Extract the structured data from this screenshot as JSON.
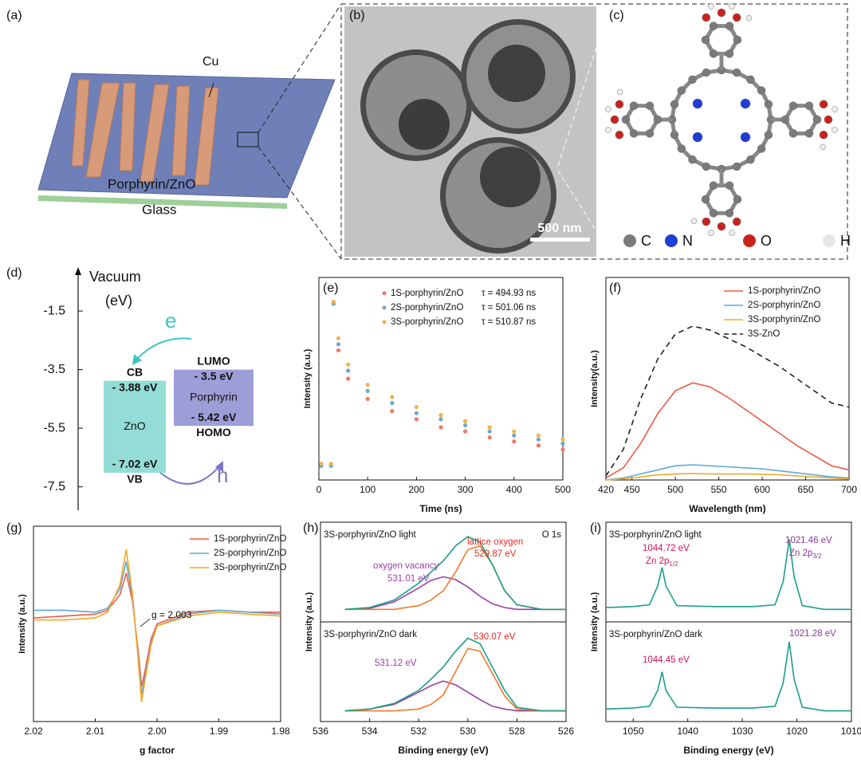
{
  "panel_labels": [
    "(a)",
    "(b)",
    "(c)",
    "(d)",
    "(e)",
    "(f)",
    "(g)",
    "(h)",
    "(i)"
  ],
  "device": {
    "electrode": "Cu",
    "layer": "Porphyrin/ZnO",
    "substrate": "Glass"
  },
  "tem": {
    "scale_bar": "500 nm"
  },
  "molecule": {
    "legend": [
      "C",
      "N",
      "O",
      "H"
    ]
  },
  "chart_data": [
    {
      "type": "band",
      "y_label": "Vacuum",
      "y_unit": "(eV)",
      "ylim": [
        -8.3,
        0
      ],
      "yticks": [
        -1.5,
        -3.5,
        -5.5,
        -7.5
      ],
      "carriers": [
        "e",
        "h"
      ],
      "bands": [
        {
          "name": "ZnO",
          "color": "#93ddd6",
          "values": [
            -3.88,
            -7.02
          ],
          "value_labels": [
            "- 3.88 eV",
            "- 7.02 eV"
          ],
          "top_name": "CB",
          "bottom_name": "VB"
        },
        {
          "name": "Porphyrin",
          "color": "#9d9ed8",
          "values": [
            -3.5,
            -5.42
          ],
          "value_labels": [
            "- 3.5 eV",
            "- 5.42 eV"
          ],
          "top_name": "LUMO",
          "bottom_name": "HOMO"
        }
      ]
    },
    {
      "type": "scatter",
      "x_label": "Time (ns)",
      "y_label": "Intensity (a.u.)",
      "xlim": [
        0,
        500
      ],
      "xticks": [
        0,
        100,
        200,
        300,
        400,
        500
      ],
      "ylim": [
        0,
        1
      ],
      "x": [
        5,
        25,
        30,
        40,
        60,
        100,
        150,
        200,
        250,
        300,
        350,
        400,
        450,
        500
      ],
      "series": [
        {
          "name": "1S-porphyrin/ZnO",
          "lifetime": "τ = 494.93 ns",
          "color": "#f07767",
          "values": [
            0.07,
            0.07,
            0.87,
            0.64,
            0.5,
            0.4,
            0.34,
            0.3,
            0.26,
            0.24,
            0.21,
            0.19,
            0.17,
            0.15
          ]
        },
        {
          "name": "2S-porphyrin/ZnO",
          "lifetime": "τ = 501.06 ns",
          "color": "#6fa9c9",
          "values": [
            0.07,
            0.07,
            0.87,
            0.67,
            0.54,
            0.44,
            0.38,
            0.33,
            0.3,
            0.27,
            0.24,
            0.22,
            0.2,
            0.18
          ]
        },
        {
          "name": "3S-porphyrin/ZnO",
          "lifetime": "τ = 510.87 ns",
          "color": "#f2b24e",
          "values": [
            0.08,
            0.08,
            0.88,
            0.7,
            0.57,
            0.47,
            0.41,
            0.36,
            0.32,
            0.29,
            0.26,
            0.24,
            0.22,
            0.2
          ]
        }
      ]
    },
    {
      "type": "line",
      "x_label": "Wavelength (nm)",
      "y_label": "Intensity(a.u.)",
      "xlim": [
        420,
        700
      ],
      "xticks": [
        420,
        450,
        500,
        550,
        600,
        650,
        700
      ],
      "ylim": [
        0,
        1
      ],
      "x": [
        420,
        440,
        460,
        480,
        500,
        520,
        540,
        560,
        580,
        600,
        620,
        640,
        660,
        680,
        700
      ],
      "series": [
        {
          "name": "1S-porphyrin/ZnO",
          "color": "#ef5a45",
          "values": [
            0.01,
            0.06,
            0.18,
            0.33,
            0.44,
            0.48,
            0.46,
            0.41,
            0.35,
            0.29,
            0.23,
            0.17,
            0.12,
            0.07,
            0.05
          ]
        },
        {
          "name": "2S-porphyrin/ZnO",
          "color": "#5ea8d6",
          "values": [
            0,
            0.01,
            0.03,
            0.05,
            0.07,
            0.075,
            0.07,
            0.065,
            0.06,
            0.055,
            0.045,
            0.035,
            0.025,
            0.015,
            0.01
          ]
        },
        {
          "name": "3S-porphyrin/ZnO",
          "color": "#eeaa2c",
          "values": [
            0,
            0.005,
            0.015,
            0.025,
            0.03,
            0.032,
            0.03,
            0.03,
            0.03,
            0.028,
            0.025,
            0.02,
            0.015,
            0.01,
            0.005
          ]
        },
        {
          "name": "3S-ZnO",
          "color": "#222222",
          "dash": true,
          "values": [
            0.02,
            0.15,
            0.4,
            0.6,
            0.72,
            0.76,
            0.74,
            0.7,
            0.66,
            0.61,
            0.56,
            0.5,
            0.44,
            0.38,
            0.36
          ]
        }
      ]
    },
    {
      "type": "line",
      "x_label": "g factor",
      "y_label": "Intensity (a.u.)",
      "xlim": [
        2.02,
        1.98
      ],
      "xticks": [
        2.02,
        2.01,
        {
          "value": 2,
          "label": "2.00"
        },
        1.99,
        1.98
      ],
      "ylim": [
        0,
        1
      ],
      "annotation": "g = 2.003",
      "x": [
        2.02,
        2.015,
        2.01,
        2.008,
        2.006,
        2.005,
        2.004,
        2.003,
        2.0025,
        2.002,
        2.001,
        2.0,
        1.995,
        1.99,
        1.985,
        1.98
      ],
      "series": [
        {
          "name": "1S-porphyrin/ZnO",
          "color": "#ef5a45",
          "values": [
            0.53,
            0.54,
            0.55,
            0.57,
            0.65,
            0.76,
            0.62,
            0.35,
            0.18,
            0.25,
            0.42,
            0.5,
            0.56,
            0.57,
            0.56,
            0.56
          ]
        },
        {
          "name": "2S-porphyrin/ZnO",
          "color": "#5ea8d6",
          "values": [
            0.57,
            0.57,
            0.56,
            0.58,
            0.68,
            0.82,
            0.64,
            0.32,
            0.14,
            0.22,
            0.4,
            0.49,
            0.55,
            0.57,
            0.56,
            0.55
          ]
        },
        {
          "name": "3S-porphyrin/ZnO",
          "color": "#f5a623",
          "values": [
            0.52,
            0.52,
            0.53,
            0.56,
            0.7,
            0.88,
            0.66,
            0.3,
            0.1,
            0.2,
            0.39,
            0.49,
            0.54,
            0.56,
            0.55,
            0.54
          ]
        }
      ]
    },
    {
      "type": "line",
      "x_label": "Binding energy (eV)",
      "y_label": "Intensity (a.u.)",
      "label": "O 1s",
      "xlim": [
        536,
        526
      ],
      "xticks": [
        536,
        534,
        532,
        530,
        528,
        526
      ],
      "ylim": [
        0,
        1
      ],
      "x": [
        535,
        534,
        533,
        532,
        531.5,
        531,
        530.5,
        530,
        529.5,
        529,
        528.5,
        528,
        527,
        526
      ],
      "subplots": [
        {
          "title": "3S-porphyrin/ZnO light",
          "series": [
            {
              "color": "#9b3fa8",
              "values": [
                0.1,
                0.11,
                0.18,
                0.33,
                0.41,
                0.45,
                0.42,
                0.34,
                0.24,
                0.16,
                0.12,
                0.1,
                0.1,
                0.1
              ]
            },
            {
              "color": "#f07a2a",
              "values": [
                0.1,
                0.1,
                0.1,
                0.14,
                0.2,
                0.3,
                0.5,
                0.74,
                0.78,
                0.58,
                0.3,
                0.15,
                0.1,
                0.1
              ]
            },
            {
              "color": "#1a9e8a",
              "values": [
                0.1,
                0.12,
                0.2,
                0.38,
                0.5,
                0.62,
                0.78,
                0.88,
                0.82,
                0.58,
                0.3,
                0.15,
                0.1,
                0.1
              ]
            }
          ],
          "annotations": [
            {
              "text": "lattice oxygen",
              "color": "#e8281e"
            },
            {
              "text": "529.87 eV",
              "color": "#e8281e"
            },
            {
              "text": "oxygen vacancy",
              "color": "#9b3fa8"
            },
            {
              "text": "531.01 eV",
              "color": "#9b3fa8"
            }
          ]
        },
        {
          "title": "3S-porphyrin/ZnO dark",
          "series": [
            {
              "color": "#9b3fa8",
              "values": [
                0.08,
                0.1,
                0.15,
                0.28,
                0.35,
                0.4,
                0.36,
                0.28,
                0.2,
                0.13,
                0.1,
                0.08,
                0.08,
                0.08
              ]
            },
            {
              "color": "#f07a2a",
              "values": [
                0.08,
                0.08,
                0.08,
                0.1,
                0.15,
                0.25,
                0.5,
                0.75,
                0.72,
                0.48,
                0.24,
                0.1,
                0.08,
                0.08
              ]
            },
            {
              "color": "#1a9e8a",
              "values": [
                0.08,
                0.1,
                0.16,
                0.3,
                0.42,
                0.55,
                0.72,
                0.86,
                0.8,
                0.55,
                0.3,
                0.12,
                0.08,
                0.08
              ]
            }
          ],
          "annotations": [
            {
              "text": "530.07 eV",
              "color": "#e8281e"
            },
            {
              "text": "531.12 eV",
              "color": "#9b3fa8"
            }
          ]
        }
      ]
    },
    {
      "type": "line",
      "x_label": "Binding energy (eV)",
      "y_label": "Intensity (a.u.)",
      "xlim": [
        1055,
        1010
      ],
      "xticks": [
        1050,
        1040,
        1030,
        1020,
        1010
      ],
      "ylim": [
        0,
        1
      ],
      "x": [
        1055,
        1050,
        1047,
        1045.5,
        1044.7,
        1044,
        1042,
        1035,
        1028,
        1024,
        1022.5,
        1021.4,
        1020.5,
        1019,
        1015,
        1010
      ],
      "subplots": [
        {
          "title": "3S-porphyrin/ZnO light",
          "series": [
            {
              "color": "#1a9e8a",
              "values": [
                0.12,
                0.13,
                0.15,
                0.35,
                0.55,
                0.35,
                0.14,
                0.13,
                0.13,
                0.15,
                0.4,
                0.85,
                0.45,
                0.14,
                0.1,
                0.1
              ]
            }
          ],
          "annotations": [
            {
              "text": "1044.72 eV",
              "color": "#d4145a"
            },
            {
              "text": "Zn 2p",
              "sub": "1/2",
              "color": "#d4145a"
            },
            {
              "text": "1021.46 eV",
              "color": "#8b3a9b"
            },
            {
              "text": "Zn 2p",
              "sub": "3/2",
              "color": "#8b3a9b"
            }
          ]
        },
        {
          "title": "3S-porphyrin/ZnO dark",
          "series": [
            {
              "color": "#1a9e8a",
              "values": [
                0.1,
                0.11,
                0.13,
                0.3,
                0.5,
                0.3,
                0.12,
                0.11,
                0.11,
                0.13,
                0.38,
                0.82,
                0.42,
                0.12,
                0.08,
                0.08
              ]
            }
          ],
          "annotations": [
            {
              "text": "1044.45 eV",
              "color": "#d4145a"
            },
            {
              "text": "1021.28 eV",
              "color": "#8b3a9b"
            }
          ]
        }
      ]
    }
  ]
}
